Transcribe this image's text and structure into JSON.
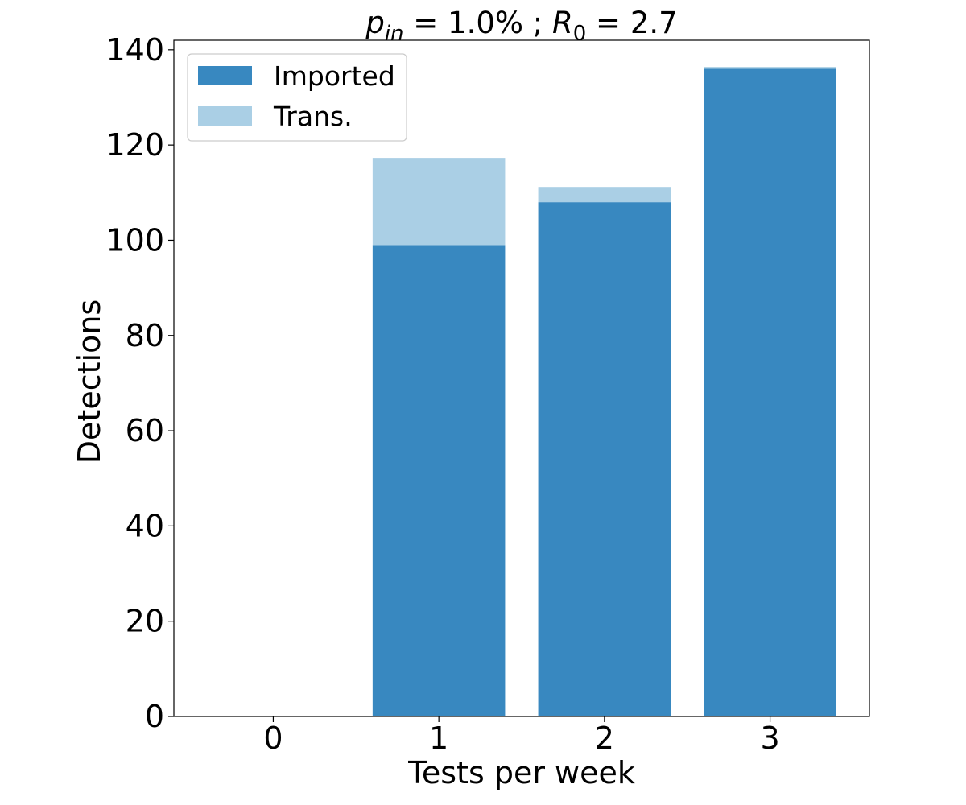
{
  "chart_data": {
    "type": "bar",
    "stacked": true,
    "title": {
      "p_symbol": "p",
      "p_subscript": "in",
      "p_value": " = 1.0% ; ",
      "r_symbol": "R",
      "r_subscript": "0",
      "r_value": " = 2.7"
    },
    "xlabel": "Tests per week",
    "ylabel": "Detections",
    "categories": [
      "0",
      "1",
      "2",
      "3"
    ],
    "ylim": [
      0,
      142
    ],
    "yticks": [
      0,
      20,
      40,
      60,
      80,
      100,
      120,
      140
    ],
    "ytick_labels": [
      "0",
      "20",
      "40",
      "60",
      "80",
      "100",
      "120",
      "140"
    ],
    "grid": false,
    "legend_position": "top-left",
    "series": [
      {
        "name": "Imported",
        "color": "#3888c0",
        "values": [
          0,
          99,
          108,
          136
        ]
      },
      {
        "name": "Trans.",
        "color": "#aacfe5",
        "values": [
          0,
          18.3,
          3.2,
          0.4
        ]
      }
    ]
  }
}
